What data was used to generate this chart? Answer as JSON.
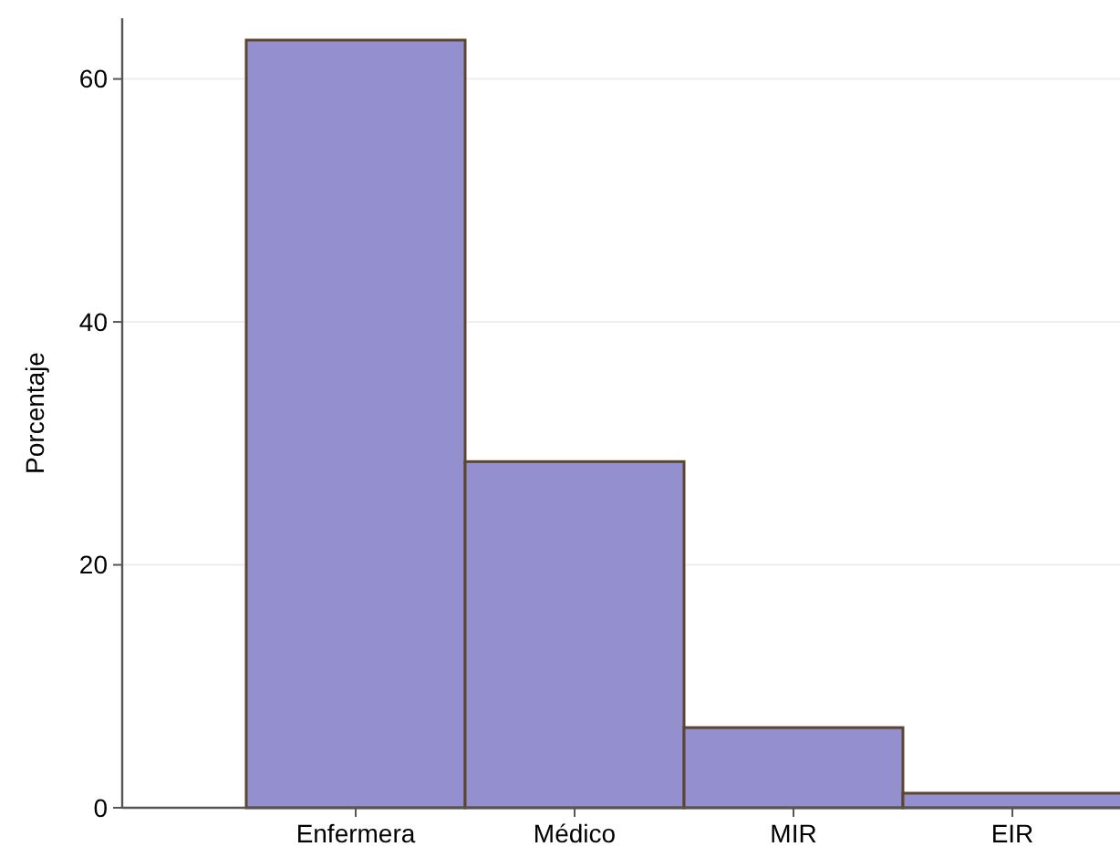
{
  "chart_data": {
    "type": "bar",
    "ylabel": "Porcentaje",
    "categories": [
      "Enfermera",
      "Médico",
      "MIR",
      "EIR"
    ],
    "values": [
      63.2,
      28.5,
      6.6,
      1.2
    ],
    "color": "#9490d0",
    "ylim": [
      0,
      65
    ],
    "yticks": [
      0,
      20,
      40,
      60
    ],
    "grid": "y"
  }
}
